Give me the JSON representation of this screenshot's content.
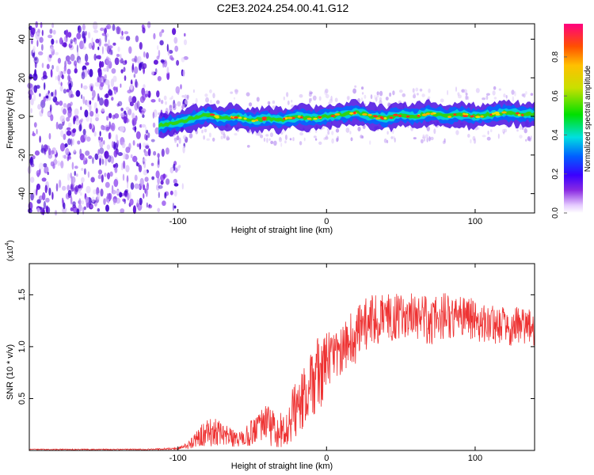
{
  "title": "C2E3.2024.254.00.41.G12",
  "chart_data": [
    {
      "type": "heatmap",
      "xlabel": "Height of straight line (km)",
      "ylabel": "Frequency (Hz)",
      "xlim": [
        -200,
        140
      ],
      "ylim": [
        -50,
        48
      ],
      "xticks": [
        -100,
        0,
        100
      ],
      "yticks": [
        -40,
        -20,
        0,
        20,
        40
      ],
      "xtick_labels": [
        "-100",
        "0",
        "100"
      ],
      "ytick_labels": [
        "-40",
        "-20",
        "0",
        "20",
        "40"
      ],
      "noise_region_x": [
        -200,
        -100
      ],
      "signal_onset_x": -113,
      "signal_track": {
        "x": [
          -113,
          -100,
          -90,
          -80,
          -70,
          -60,
          -50,
          -40,
          -30,
          -20,
          -10,
          0,
          10,
          20,
          30,
          40,
          50,
          60,
          70,
          80,
          90,
          100,
          110,
          120,
          130,
          140
        ],
        "freq_hz": [
          -5,
          -3,
          -1,
          1,
          -1,
          0,
          -2,
          -1,
          -2,
          0,
          -1,
          0,
          1,
          2,
          0,
          -1,
          1,
          0,
          2,
          0,
          1,
          0,
          1,
          2,
          1,
          1
        ]
      },
      "colorbar": {
        "label": "Normalized spectral amplitude",
        "range": [
          0.0,
          0.97
        ],
        "ticks": [
          0.0,
          0.2,
          0.4,
          0.6,
          0.8
        ],
        "tick_labels": [
          "0.0",
          "0.2",
          "0.4",
          "0.6",
          "0.8"
        ]
      },
      "grid": false
    },
    {
      "type": "line",
      "xlabel": "Height of straight line (km)",
      "ylabel": "SNR (10 * v/v)",
      "y_multiplier_label": "(x10",
      "y_multiplier_exp": "4",
      "y_multiplier_close": ")",
      "xlim": [
        -200,
        140
      ],
      "ylim": [
        0,
        1.8
      ],
      "xticks": [
        -100,
        0,
        100
      ],
      "yticks": [
        0.5,
        1.0,
        1.5
      ],
      "xtick_labels": [
        "-100",
        "0",
        "100"
      ],
      "ytick_labels": [
        "0.5",
        "1.0",
        "1.5"
      ],
      "series": [
        {
          "color": "#ee3333",
          "x": [
            -200,
            -180,
            -160,
            -140,
            -120,
            -100,
            -95,
            -90,
            -85,
            -80,
            -75,
            -70,
            -65,
            -60,
            -55,
            -50,
            -45,
            -40,
            -35,
            -30,
            -25,
            -20,
            -15,
            -10,
            -5,
            0,
            5,
            10,
            15,
            20,
            25,
            30,
            35,
            40,
            50,
            60,
            70,
            80,
            90,
            100,
            110,
            120,
            130,
            140
          ],
          "mean": [
            0.01,
            0.01,
            0.01,
            0.01,
            0.01,
            0.02,
            0.04,
            0.08,
            0.14,
            0.18,
            0.2,
            0.16,
            0.12,
            0.1,
            0.12,
            0.17,
            0.22,
            0.24,
            0.2,
            0.22,
            0.3,
            0.4,
            0.5,
            0.62,
            0.75,
            0.85,
            0.9,
            0.95,
            1.05,
            1.1,
            1.2,
            1.25,
            1.25,
            1.28,
            1.3,
            1.3,
            1.25,
            1.3,
            1.28,
            1.25,
            1.22,
            1.2,
            1.2,
            1.18
          ],
          "spread": [
            0.005,
            0.005,
            0.005,
            0.005,
            0.006,
            0.01,
            0.03,
            0.06,
            0.1,
            0.14,
            0.16,
            0.12,
            0.1,
            0.08,
            0.1,
            0.14,
            0.16,
            0.2,
            0.18,
            0.2,
            0.24,
            0.28,
            0.3,
            0.36,
            0.4,
            0.3,
            0.25,
            0.22,
            0.25,
            0.3,
            0.28,
            0.26,
            0.24,
            0.25,
            0.22,
            0.22,
            0.24,
            0.22,
            0.2,
            0.22,
            0.2,
            0.2,
            0.18,
            0.18
          ]
        }
      ],
      "grid": false
    }
  ]
}
